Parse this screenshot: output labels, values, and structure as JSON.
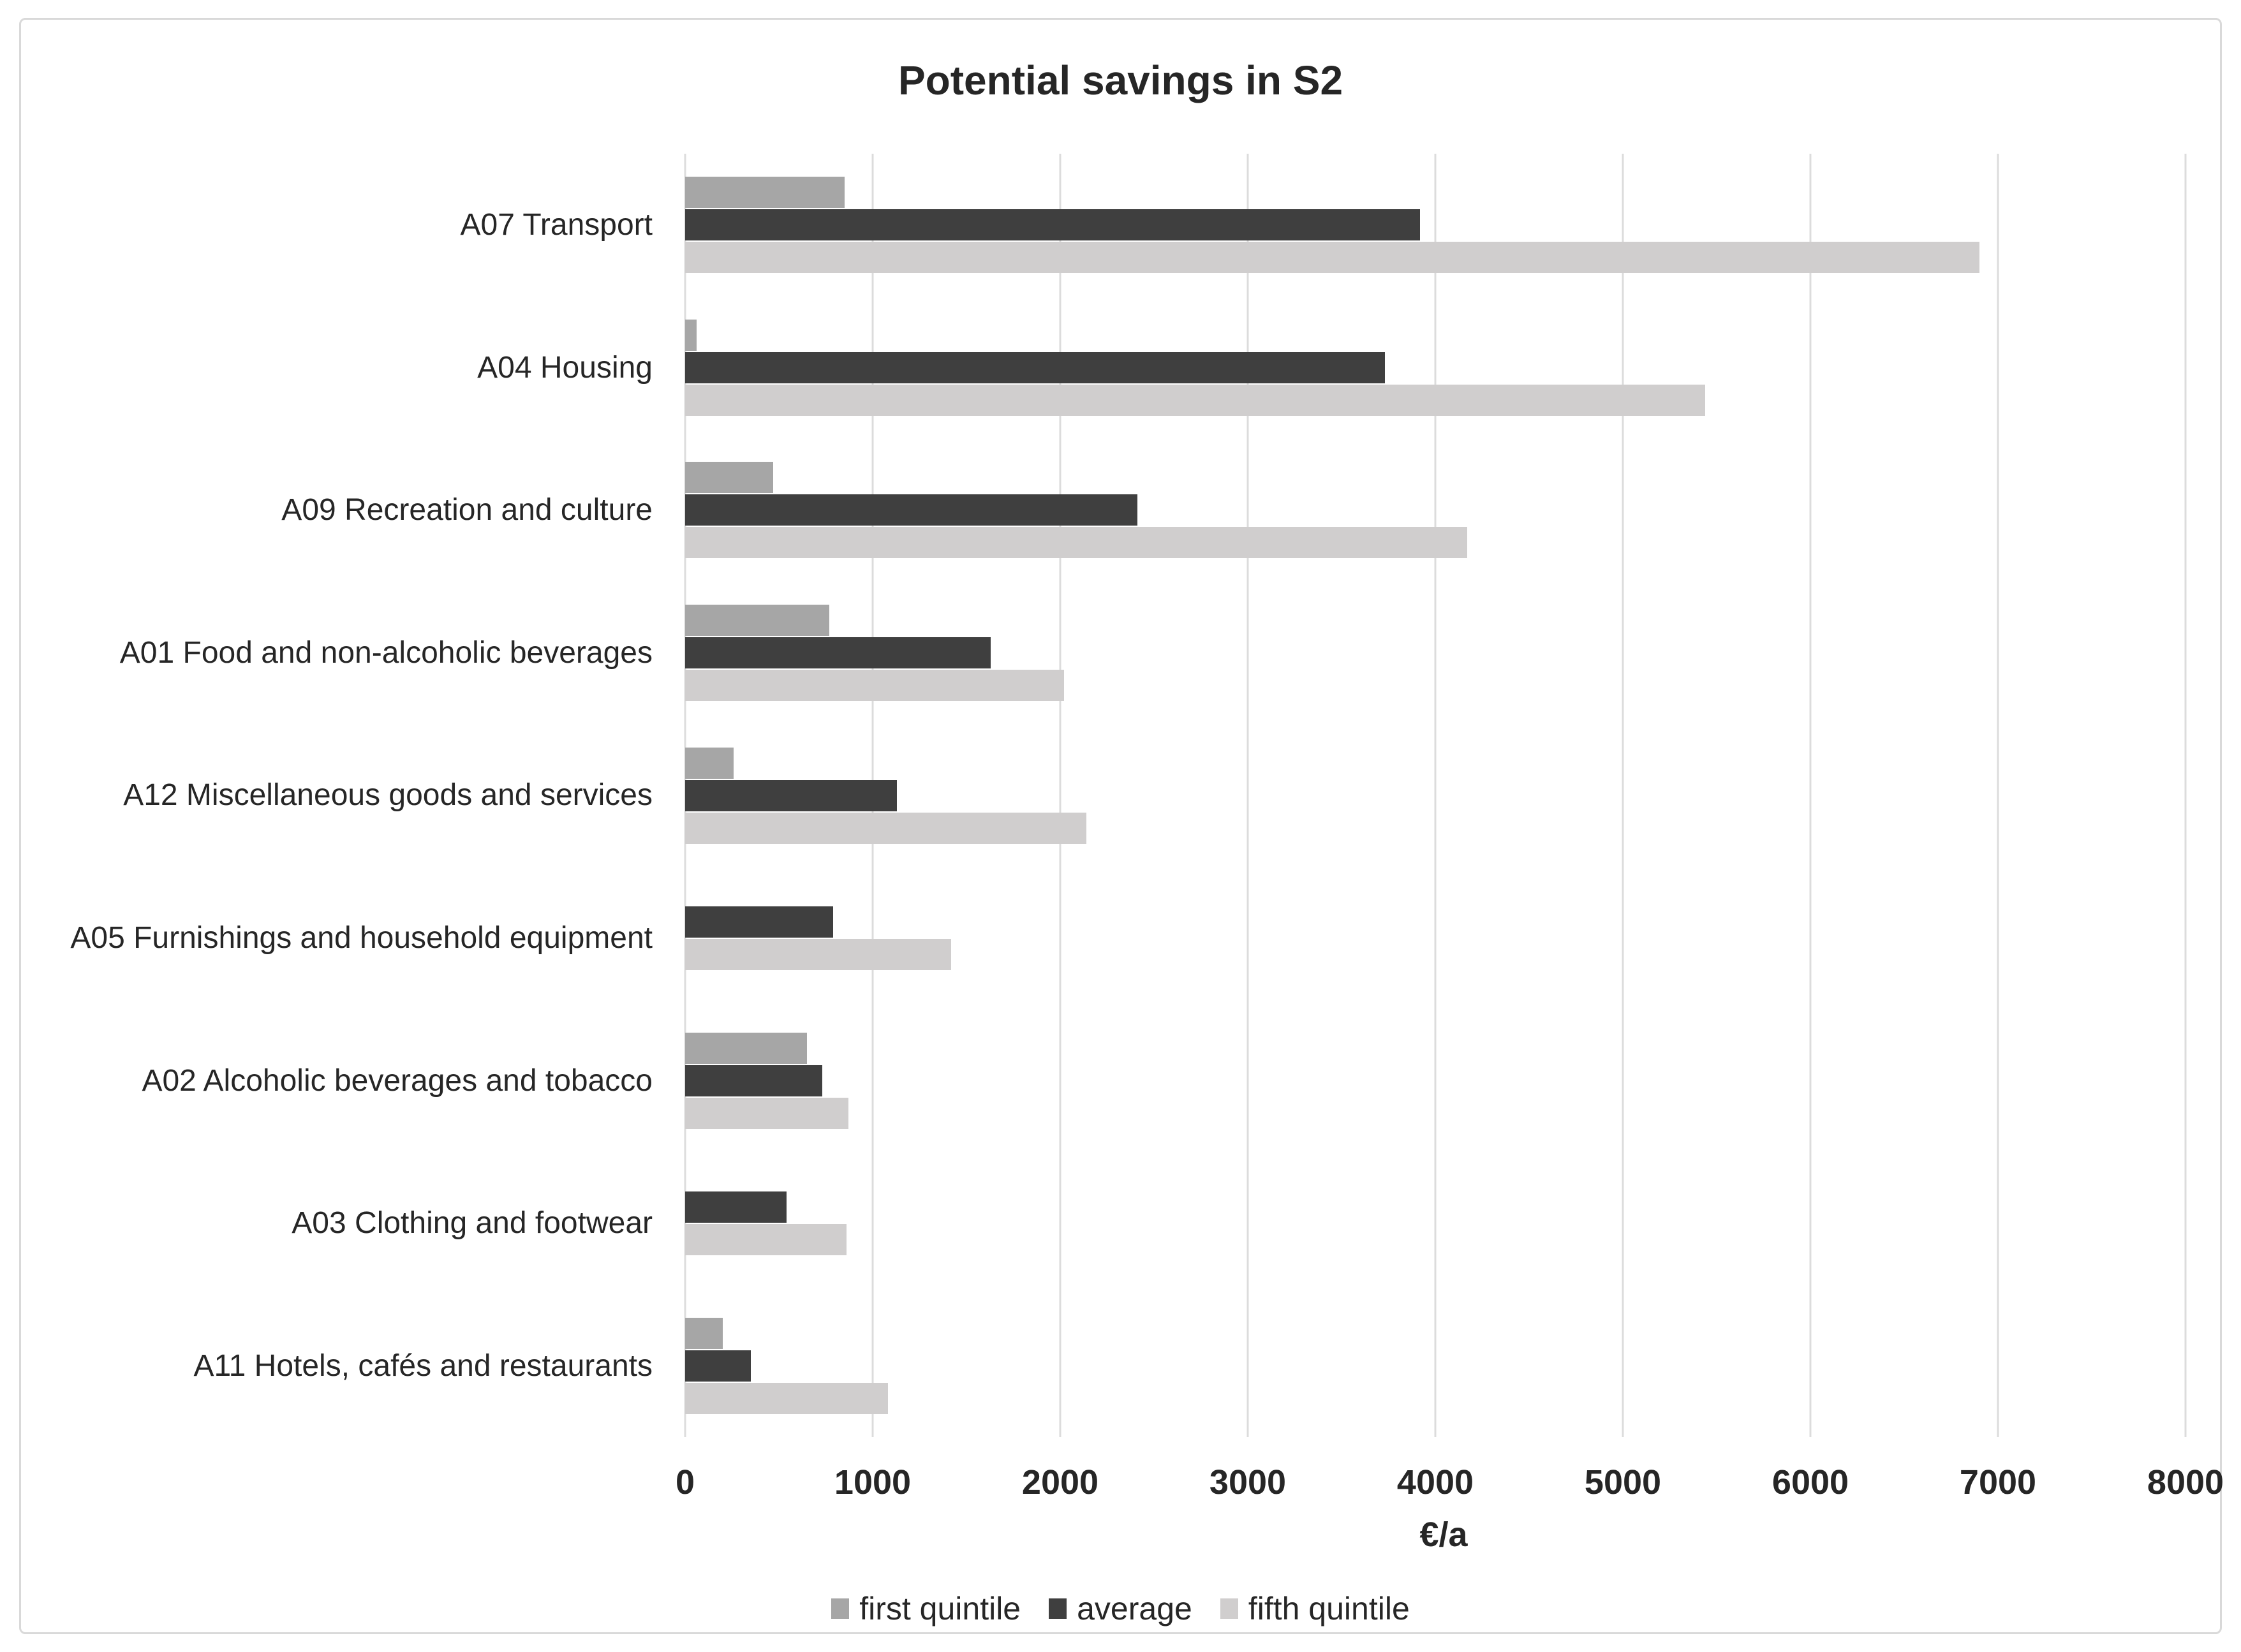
{
  "title": "Potential savings in S2",
  "chart_data": {
    "type": "bar",
    "orientation": "horizontal",
    "title": "Potential savings in S2",
    "xlabel": "€/a",
    "ylabel": "",
    "xlim": [
      0,
      8000
    ],
    "xticks": [
      0,
      1000,
      2000,
      3000,
      4000,
      5000,
      6000,
      7000,
      8000
    ],
    "grid": "vertical",
    "legend_position": "bottom",
    "categories": [
      "A07 Transport",
      "A04 Housing",
      "A09 Recreation and culture",
      "A01 Food and non-alcoholic beverages",
      "A12 Miscellaneous goods and services",
      "A05 Furnishings and household equipment",
      "A02 Alcoholic beverages and tobacco",
      "A03 Clothing and footwear",
      "A11 Hotels, cafés and restaurants"
    ],
    "series": [
      {
        "name": "first quintile",
        "color": "#A6A6A6",
        "values": [
          850,
          60,
          470,
          770,
          260,
          0,
          650,
          0,
          200
        ]
      },
      {
        "name": "average",
        "color": "#3F3F3F",
        "values": [
          3920,
          3730,
          2410,
          1630,
          1130,
          790,
          730,
          540,
          350
        ]
      },
      {
        "name": "fifth quintile",
        "color": "#D0CECE",
        "values": [
          6900,
          5440,
          4170,
          2020,
          2140,
          1420,
          870,
          860,
          1080
        ]
      }
    ]
  },
  "colors": {
    "gridline": "#DCDCDC",
    "border": "#D9D9D9",
    "text": "#262626"
  }
}
